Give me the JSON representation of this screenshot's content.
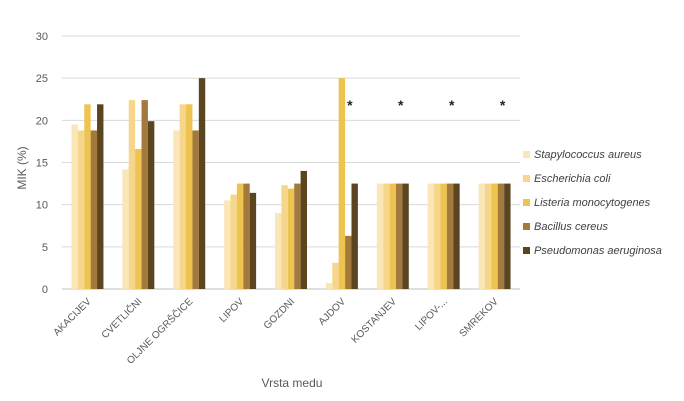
{
  "chart_data": {
    "type": "bar",
    "title": "",
    "xlabel": "Vrsta medu",
    "ylabel": "MIK (%)",
    "ylim": [
      0,
      30
    ],
    "yticks": [
      "0",
      "5",
      "10",
      "15",
      "20",
      "25",
      "30"
    ],
    "grid": true,
    "legend_position": "right",
    "categories": [
      "AKACIJEV",
      "CVETLIČNI",
      "OLJNE OGRŠČICE",
      "LIPOV",
      "GOZDNI",
      "AJDOV",
      "KOSTANJEV",
      "LIPOV-...",
      "SMREKOV"
    ],
    "series": [
      {
        "name": "Stapylococcus aureus",
        "color": "#FBE6B8",
        "values": [
          19.5,
          14.2,
          18.8,
          10.5,
          9.0,
          0.7,
          12.5,
          12.5,
          12.5
        ]
      },
      {
        "name": "Escherichia coli",
        "color": "#F6D68B",
        "values": [
          18.8,
          22.4,
          21.9,
          11.2,
          12.3,
          3.1,
          12.5,
          12.5,
          12.5
        ]
      },
      {
        "name": "Listeria monocytogenes",
        "color": "#EFC34F",
        "values": [
          21.9,
          16.6,
          21.9,
          12.5,
          11.9,
          25.0,
          12.5,
          12.5,
          12.5
        ]
      },
      {
        "name": "Bacillus cereus",
        "color": "#A47A3C",
        "values": [
          18.8,
          22.4,
          18.8,
          12.5,
          12.5,
          6.3,
          12.5,
          12.5,
          12.5
        ]
      },
      {
        "name": "Pseudomonas aeruginosa",
        "color": "#5B4420",
        "values": [
          21.9,
          19.9,
          25.0,
          11.4,
          14.0,
          12.5,
          12.5,
          12.5,
          12.5
        ]
      }
    ],
    "annotations": [
      {
        "category": "AJDOV",
        "text": "*"
      },
      {
        "category": "KOSTANJEV",
        "text": "*"
      },
      {
        "category": "LIPOV-...",
        "text": "*"
      },
      {
        "category": "SMREKOV",
        "text": "*"
      }
    ]
  }
}
